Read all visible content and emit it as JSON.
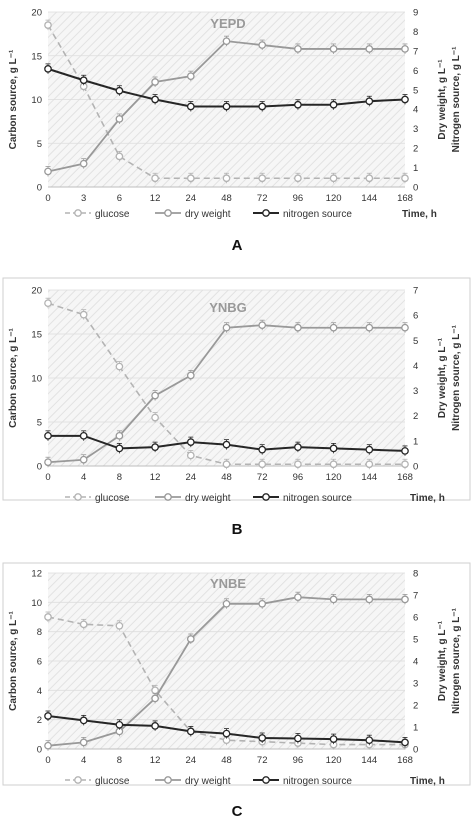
{
  "colors": {
    "glucose": "#b3b3b3",
    "dry": "#999999",
    "nitrogen": "#262626",
    "border": "#cfcfcf",
    "grid": "#dddddd"
  },
  "chart_data": [
    {
      "type": "line",
      "panel_label": "A",
      "title": "YEPD",
      "categories": [
        "0",
        "3",
        "6",
        "12",
        "24",
        "48",
        "72",
        "96",
        "120",
        "144",
        "168"
      ],
      "xlabel": "Time, h",
      "ylabel": "Carbon source, g L⁻¹",
      "ylabel_right": "Dry weight, g L⁻¹\nNitrogen source, g L⁻¹",
      "ylim": [
        0,
        20
      ],
      "yticks": [
        "0",
        "5",
        "10",
        "15",
        "20"
      ],
      "ylim_right": [
        0,
        9
      ],
      "yticks_right": [
        "0",
        "1",
        "2",
        "3",
        "4",
        "5",
        "6",
        "7",
        "8",
        "9"
      ],
      "legend": [
        "glucose",
        "dry weight",
        "nitrogen source"
      ],
      "series": [
        {
          "name": "glucose",
          "axis": "left",
          "values": [
            18.5,
            11.5,
            3.5,
            1.0,
            1.0,
            1.0,
            1.0,
            1.0,
            1.0,
            1.0,
            1.0
          ]
        },
        {
          "name": "dry weight",
          "axis": "right",
          "values": [
            0.8,
            1.2,
            3.5,
            5.4,
            5.7,
            7.5,
            7.3,
            7.1,
            7.1,
            7.1,
            7.1
          ]
        },
        {
          "name": "nitrogen source",
          "axis": "left",
          "values": [
            13.5,
            12.2,
            11.0,
            10.0,
            9.2,
            9.2,
            9.2,
            9.4,
            9.4,
            9.8,
            10.0
          ]
        }
      ]
    },
    {
      "type": "line",
      "panel_label": "B",
      "title": "YNBG",
      "categories": [
        "0",
        "4",
        "8",
        "12",
        "24",
        "48",
        "72",
        "96",
        "120",
        "144",
        "168"
      ],
      "xlabel": "Time, h",
      "ylabel": "Carbon source, g L⁻¹",
      "ylabel_right": "Dry weight, g L⁻¹\nNitrogen source, g L⁻¹",
      "ylim": [
        0,
        20
      ],
      "yticks": [
        "0",
        "5",
        "10",
        "15",
        "20"
      ],
      "ylim_right": [
        0,
        7
      ],
      "yticks_right": [
        "0",
        "1",
        "2",
        "3",
        "4",
        "5",
        "6",
        "7"
      ],
      "legend": [
        "glucose",
        "dry weight",
        "nitrogen source"
      ],
      "series": [
        {
          "name": "glucose",
          "axis": "left",
          "values": [
            18.5,
            17.2,
            11.3,
            5.5,
            1.2,
            0.2,
            0.2,
            0.2,
            0.2,
            0.2,
            0.2
          ]
        },
        {
          "name": "dry weight",
          "axis": "right",
          "values": [
            0.15,
            0.25,
            1.2,
            2.8,
            3.6,
            5.5,
            5.6,
            5.5,
            5.5,
            5.5,
            5.5
          ]
        },
        {
          "name": "nitrogen source",
          "axis": "right",
          "values": [
            1.2,
            1.2,
            0.7,
            0.75,
            0.95,
            0.85,
            0.65,
            0.75,
            0.7,
            0.65,
            0.6
          ]
        }
      ]
    },
    {
      "type": "line",
      "panel_label": "C",
      "title": "YNBE",
      "categories": [
        "0",
        "4",
        "8",
        "12",
        "24",
        "48",
        "72",
        "96",
        "120",
        "144",
        "168"
      ],
      "xlabel": "Time, h",
      "ylabel": "Carbon source, g L⁻¹",
      "ylabel_right": "Dry weight, g L⁻¹\nNitrogen source, g L⁻¹",
      "ylim": [
        0,
        12
      ],
      "yticks": [
        "0",
        "2",
        "4",
        "6",
        "8",
        "10",
        "12"
      ],
      "ylim_right": [
        0,
        8
      ],
      "yticks_right": [
        "0",
        "1",
        "2",
        "3",
        "4",
        "5",
        "6",
        "7",
        "8"
      ],
      "legend": [
        "glucose",
        "dry weight",
        "nitrogen source"
      ],
      "series": [
        {
          "name": "glucose",
          "axis": "left",
          "values": [
            9.0,
            8.5,
            8.4,
            4.0,
            1.2,
            0.6,
            0.5,
            0.4,
            0.3,
            0.3,
            0.3
          ]
        },
        {
          "name": "dry weight",
          "axis": "right",
          "values": [
            0.15,
            0.3,
            0.8,
            2.3,
            5.0,
            6.6,
            6.6,
            6.9,
            6.8,
            6.8,
            6.8
          ]
        },
        {
          "name": "nitrogen source",
          "axis": "right",
          "values": [
            1.5,
            1.3,
            1.1,
            1.05,
            0.8,
            0.7,
            0.5,
            0.48,
            0.45,
            0.4,
            0.3
          ]
        }
      ]
    }
  ]
}
